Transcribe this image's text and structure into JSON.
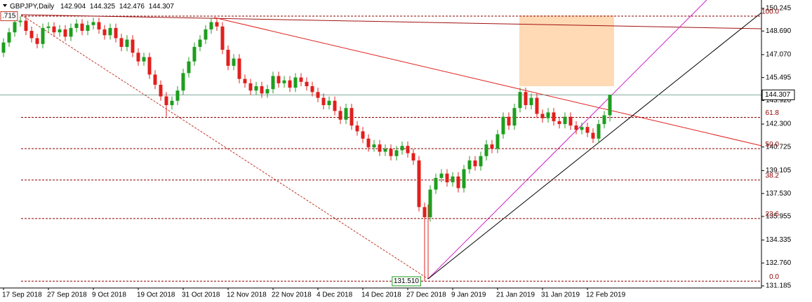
{
  "chart_data": {
    "type": "candlestick",
    "symbol": "GBPJPY,Daily",
    "categories": [
      "17 Sep 2018",
      null,
      null,
      null,
      null,
      null,
      null,
      null,
      "27 Sep 2018",
      null,
      null,
      null,
      null,
      null,
      null,
      null,
      "9 Oct 2018",
      null,
      null,
      null,
      null,
      null,
      null,
      null,
      "19 Oct 2018",
      null,
      null,
      null,
      null,
      null,
      null,
      null,
      "31 Oct 2018",
      null,
      null,
      null,
      null,
      null,
      null,
      null,
      "12 Nov 2018",
      null,
      null,
      null,
      null,
      null,
      null,
      null,
      "22 Nov 2018",
      null,
      null,
      null,
      null,
      null,
      null,
      null,
      "4 Dec 2018",
      null,
      null,
      null,
      null,
      null,
      null,
      null,
      "14 Dec 2018",
      null,
      null,
      null,
      null,
      null,
      null,
      null,
      "27 Dec 2018",
      null,
      null,
      null,
      null,
      null,
      null,
      null,
      "9 Jan 2019",
      null,
      null,
      null,
      null,
      null,
      null,
      null,
      "21 Jan 2019",
      null,
      null,
      null,
      null,
      null,
      null,
      null,
      "31 Jan 2019",
      null,
      null,
      null,
      null,
      null,
      null,
      null,
      "12 Feb 2019",
      null,
      null,
      null,
      null
    ],
    "ohlc": [
      [
        147.2,
        148.2,
        146.9,
        147.9
      ],
      [
        147.9,
        148.9,
        147.6,
        148.6
      ],
      [
        148.6,
        149.715,
        148.3,
        149.3
      ],
      [
        149.3,
        149.7,
        149.0,
        149.4
      ],
      [
        149.4,
        149.7,
        148.4,
        148.7
      ],
      [
        148.7,
        149.0,
        147.9,
        148.2
      ],
      [
        148.2,
        148.5,
        147.5,
        147.8
      ],
      [
        147.8,
        149.2,
        147.5,
        148.9
      ],
      [
        148.9,
        149.3,
        148.6,
        149.0
      ],
      [
        149.0,
        149.3,
        148.3,
        148.6
      ],
      [
        148.6,
        149.1,
        148.3,
        148.8
      ],
      [
        148.8,
        149.1,
        148.0,
        148.3
      ],
      [
        148.3,
        149.2,
        148.0,
        148.9
      ],
      [
        148.9,
        149.5,
        148.6,
        149.2
      ],
      [
        149.2,
        149.5,
        148.4,
        148.7
      ],
      [
        148.7,
        149.4,
        148.4,
        149.1
      ],
      [
        149.1,
        149.6,
        148.8,
        149.3
      ],
      [
        149.3,
        149.6,
        148.5,
        148.8
      ],
      [
        148.8,
        149.1,
        148.1,
        148.4
      ],
      [
        148.4,
        149.2,
        148.1,
        148.9
      ],
      [
        148.9,
        149.2,
        147.9,
        148.2
      ],
      [
        148.2,
        148.5,
        147.3,
        147.6
      ],
      [
        147.6,
        148.4,
        147.3,
        148.1
      ],
      [
        148.1,
        148.4,
        146.9,
        147.2
      ],
      [
        147.2,
        147.5,
        146.3,
        146.6
      ],
      [
        146.6,
        147.2,
        146.3,
        146.9
      ],
      [
        146.9,
        147.2,
        145.4,
        145.7
      ],
      [
        145.7,
        146.0,
        144.7,
        145.0
      ],
      [
        145.0,
        145.3,
        143.9,
        144.2
      ],
      [
        144.2,
        144.5,
        142.8,
        143.6
      ],
      [
        143.6,
        144.2,
        143.3,
        143.9
      ],
      [
        143.9,
        144.9,
        143.6,
        144.6
      ],
      [
        144.6,
        146.1,
        144.3,
        145.8
      ],
      [
        145.8,
        146.9,
        145.5,
        146.6
      ],
      [
        146.6,
        147.9,
        146.3,
        147.6
      ],
      [
        147.6,
        148.4,
        147.3,
        148.1
      ],
      [
        148.1,
        149.1,
        147.8,
        148.8
      ],
      [
        148.8,
        149.6,
        148.5,
        149.3
      ],
      [
        149.3,
        149.6,
        148.7,
        149.0
      ],
      [
        149.0,
        149.3,
        147.1,
        147.4
      ],
      [
        147.4,
        147.7,
        146.0,
        146.3
      ],
      [
        146.3,
        147.1,
        146.0,
        146.8
      ],
      [
        146.8,
        147.1,
        145.1,
        145.4
      ],
      [
        145.4,
        145.7,
        144.8,
        145.1
      ],
      [
        145.1,
        145.4,
        144.3,
        144.6
      ],
      [
        144.6,
        145.2,
        144.3,
        144.9
      ],
      [
        144.9,
        145.2,
        144.1,
        144.4
      ],
      [
        144.4,
        145.0,
        144.1,
        144.7
      ],
      [
        144.7,
        145.9,
        144.4,
        145.6
      ],
      [
        145.6,
        145.9,
        144.8,
        145.1
      ],
      [
        145.1,
        145.6,
        144.8,
        145.3
      ],
      [
        145.3,
        145.6,
        144.5,
        144.8
      ],
      [
        144.8,
        145.8,
        144.5,
        145.5
      ],
      [
        145.5,
        145.8,
        144.9,
        145.2
      ],
      [
        145.2,
        145.5,
        144.6,
        144.9
      ],
      [
        144.9,
        145.2,
        144.2,
        144.5
      ],
      [
        144.5,
        144.8,
        143.8,
        144.1
      ],
      [
        144.1,
        144.4,
        143.3,
        143.6
      ],
      [
        143.6,
        144.2,
        143.3,
        143.9
      ],
      [
        143.9,
        144.2,
        142.9,
        143.2
      ],
      [
        143.2,
        143.5,
        142.3,
        142.6
      ],
      [
        142.6,
        143.7,
        142.3,
        143.4
      ],
      [
        143.4,
        143.7,
        141.9,
        142.2
      ],
      [
        142.2,
        142.5,
        141.5,
        141.8
      ],
      [
        141.8,
        142.1,
        141.0,
        141.3
      ],
      [
        141.3,
        141.6,
        140.4,
        140.7
      ],
      [
        140.7,
        141.2,
        140.4,
        140.9
      ],
      [
        140.9,
        141.2,
        140.1,
        140.4
      ],
      [
        140.4,
        140.9,
        140.1,
        140.6
      ],
      [
        140.6,
        140.9,
        139.8,
        140.1
      ],
      [
        140.1,
        140.8,
        139.8,
        140.5
      ],
      [
        140.5,
        141.1,
        140.2,
        140.8
      ],
      [
        140.8,
        141.1,
        140.0,
        140.3
      ],
      [
        140.3,
        140.6,
        139.5,
        139.8
      ],
      [
        139.8,
        140.1,
        136.3,
        136.6
      ],
      [
        136.6,
        136.9,
        131.51,
        135.9
      ],
      [
        135.9,
        138.1,
        135.6,
        137.8
      ],
      [
        137.8,
        138.9,
        137.5,
        138.6
      ],
      [
        138.6,
        139.2,
        138.3,
        138.9
      ],
      [
        138.9,
        139.2,
        138.0,
        138.3
      ],
      [
        138.3,
        139.0,
        138.0,
        138.7
      ],
      [
        138.7,
        139.0,
        137.6,
        137.9
      ],
      [
        137.9,
        139.5,
        137.6,
        139.2
      ],
      [
        139.2,
        140.1,
        138.9,
        139.8
      ],
      [
        139.8,
        140.1,
        139.1,
        139.4
      ],
      [
        139.4,
        140.4,
        139.1,
        140.1
      ],
      [
        140.1,
        141.2,
        139.8,
        140.9
      ],
      [
        140.9,
        141.2,
        140.3,
        140.6
      ],
      [
        140.6,
        141.9,
        140.3,
        141.6
      ],
      [
        141.6,
        143.1,
        141.3,
        142.8
      ],
      [
        142.8,
        143.1,
        141.9,
        142.2
      ],
      [
        142.2,
        143.7,
        141.9,
        143.4
      ],
      [
        143.4,
        144.8,
        143.1,
        144.5
      ],
      [
        144.5,
        144.8,
        143.3,
        143.6
      ],
      [
        143.6,
        144.4,
        143.3,
        144.1
      ],
      [
        144.1,
        144.4,
        142.7,
        143.0
      ],
      [
        143.0,
        143.3,
        142.4,
        142.7
      ],
      [
        142.7,
        143.4,
        142.4,
        143.1
      ],
      [
        143.1,
        143.4,
        142.2,
        142.5
      ],
      [
        142.5,
        142.8,
        142.0,
        142.3
      ],
      [
        142.3,
        143.1,
        142.0,
        142.8
      ],
      [
        142.8,
        143.1,
        141.9,
        142.2
      ],
      [
        142.2,
        142.5,
        141.6,
        141.9
      ],
      [
        141.9,
        142.4,
        141.6,
        142.1
      ],
      [
        142.1,
        142.4,
        141.4,
        141.7
      ],
      [
        141.7,
        142.0,
        141.0,
        141.3
      ],
      [
        141.3,
        142.6,
        141.0,
        142.3
      ],
      [
        142.3,
        143.2,
        142.0,
        142.9
      ],
      [
        142.904,
        144.325,
        142.476,
        144.307
      ]
    ],
    "up_color": "#1e9e1e",
    "down_color": "#e0201c",
    "ylim": [
      131.09,
      150.82
    ],
    "yticks": [
      150.245,
      {
        "value": 148.69,
        "label": "148.690"
      },
      {
        "value": 147.07,
        "label": "147.070"
      },
      145.495,
      {
        "value": 143.92,
        "label": "143.920"
      },
      {
        "value": 142.3,
        "label": "142.300"
      },
      140.725,
      139.105,
      {
        "value": 137.53,
        "label": "137.530"
      },
      135.955,
      134.335,
      {
        "value": 132.76,
        "label": "132.760"
      },
      131.185
    ],
    "fib_levels": [
      {
        "value": 149.715,
        "label": "100.0"
      },
      {
        "value": 142.76,
        "label": "61.8"
      },
      {
        "value": 140.61,
        "label": "50.0"
      },
      {
        "value": 138.46,
        "label": "38.2"
      },
      {
        "value": 135.81,
        "label": "23.6"
      },
      {
        "value": 131.51,
        "label": "0.0"
      }
    ],
    "fib_color": "#8b0000",
    "annotations": [
      {
        "value": 149.715,
        "label": ".715",
        "color": "#c0392b"
      },
      {
        "value": 131.51,
        "label": "131.510",
        "color": "#1e9e1e"
      }
    ]
  }
}
